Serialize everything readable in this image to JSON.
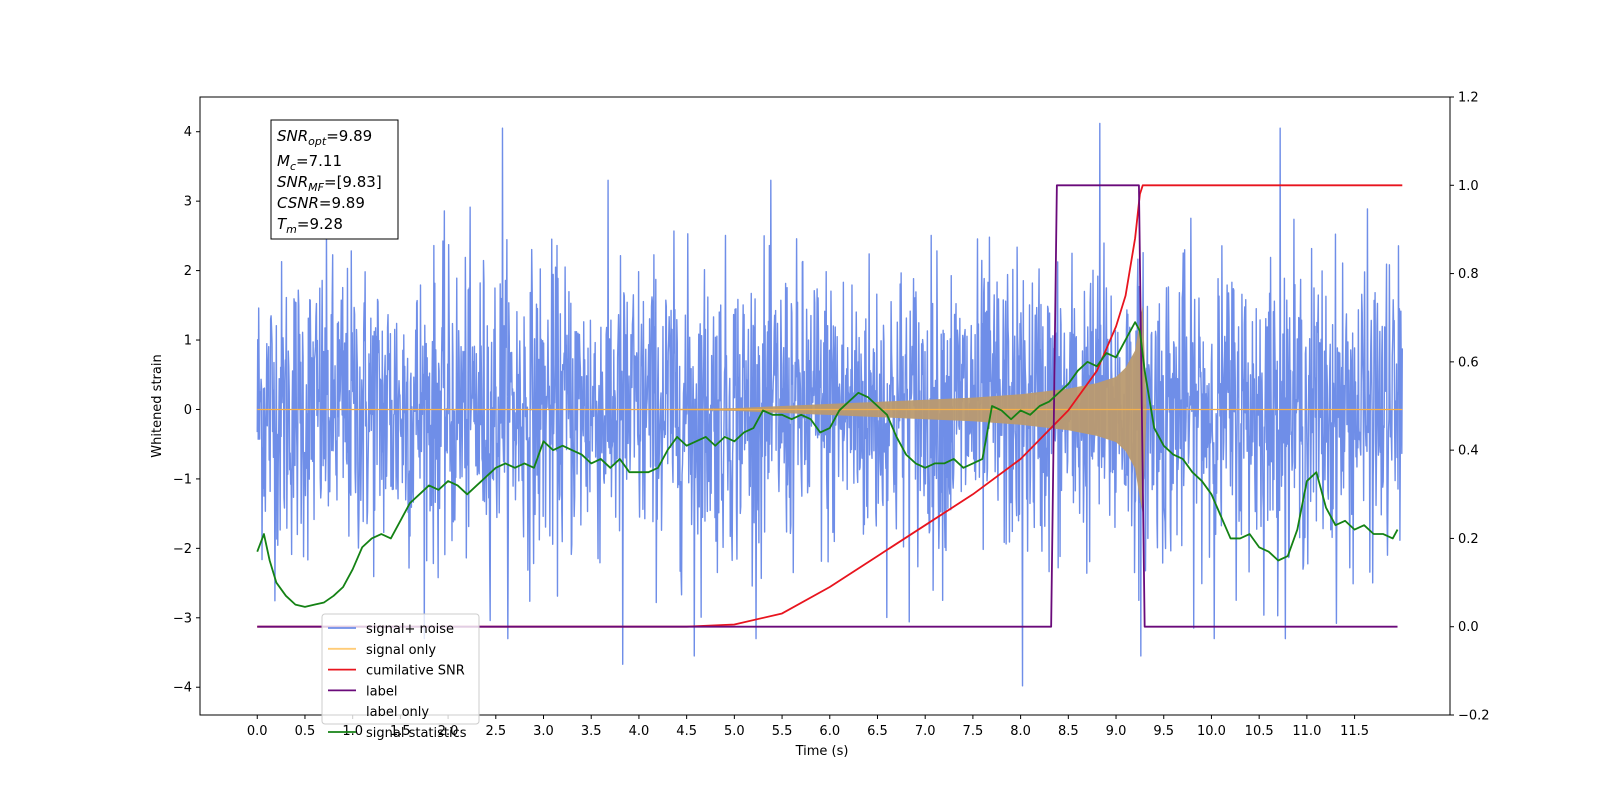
{
  "chart_data": {
    "type": "line",
    "xlabel": "Time (s)",
    "ylabel": "Whitened strain",
    "xlim": [
      -0.6,
      12.5
    ],
    "ylim": [
      -4.4,
      4.5
    ],
    "y2lim": [
      -0.2,
      1.2
    ],
    "x_ticks": [
      "0.0",
      "0.5",
      "1.0",
      "1.5",
      "2.0",
      "2.5",
      "3.0",
      "3.5",
      "4.0",
      "4.5",
      "5.0",
      "5.5",
      "6.0",
      "6.5",
      "7.0",
      "7.5",
      "8.0",
      "8.5",
      "9.0",
      "9.5",
      "10.0",
      "10.5",
      "11.0",
      "11.5"
    ],
    "y_ticks": [
      "-4",
      "-3",
      "-2",
      "-1",
      "0",
      "1",
      "2",
      "3",
      "4"
    ],
    "y2_ticks": [
      "-0.2",
      "0.0",
      "0.2",
      "0.4",
      "0.6",
      "0.8",
      "1.0",
      "1.2"
    ],
    "grid": false,
    "legend_position": "lower-left",
    "annotation": {
      "snr_opt_label": "SNR",
      "snr_opt_sub": "opt",
      "snr_opt_value": "=9.89",
      "mc_label": "M",
      "mc_sub": "c",
      "mc_value": "=7.11",
      "snr_mf_label": "SNR",
      "snr_mf_sub": "MF",
      "snr_mf_value": "=[9.83]",
      "csnr_label": "CSNR",
      "csnr_value": "=9.89",
      "tm_label": "T",
      "tm_sub": "m",
      "tm_value": "=9.28"
    },
    "series": [
      {
        "name": "signal+ noise",
        "color": "#6f8ee8",
        "axis": "left",
        "description_of_values": "whitened gaussian noise, |amplitude| mostly below 2.6, peaks near ±4",
        "noise_envelope": 2.6,
        "x_range": [
          0.0,
          12.0
        ],
        "peaks": [
          {
            "x": 2.57,
            "y": 4.05
          },
          {
            "x": 8.83,
            "y": 4.12
          },
          {
            "x": 10.72,
            "y": 4.05
          },
          {
            "x": 3.83,
            "y": -3.67
          },
          {
            "x": 8.02,
            "y": -3.98
          },
          {
            "x": 4.58,
            "y": -3.55
          },
          {
            "x": 9.26,
            "y": -3.55
          }
        ]
      },
      {
        "name": "signal only",
        "color": "#f5b04a",
        "axis": "left",
        "description_of_values": "chirp envelope (amplitude vs time)",
        "envelope_x": [
          0.0,
          4.0,
          5.0,
          5.5,
          6.0,
          6.5,
          7.0,
          7.5,
          8.0,
          8.5,
          8.8,
          9.0,
          9.1,
          9.2,
          9.24,
          9.28,
          9.32,
          12.0
        ],
        "envelope_y": [
          0.0,
          0.0,
          0.02,
          0.05,
          0.08,
          0.11,
          0.14,
          0.17,
          0.22,
          0.3,
          0.38,
          0.47,
          0.6,
          0.85,
          1.2,
          1.5,
          0.0,
          0.0
        ]
      },
      {
        "name": "cumilative SNR",
        "color": "#e8141e",
        "axis": "right",
        "x": [
          0.0,
          4.5,
          5.0,
          5.5,
          6.0,
          6.5,
          7.0,
          7.5,
          8.0,
          8.5,
          8.8,
          9.0,
          9.1,
          9.2,
          9.25,
          9.28,
          12.0
        ],
        "values": [
          0.0,
          0.0,
          0.005,
          0.03,
          0.09,
          0.16,
          0.23,
          0.3,
          0.38,
          0.49,
          0.58,
          0.68,
          0.75,
          0.88,
          0.98,
          1.0,
          1.0
        ]
      },
      {
        "name": "label",
        "color": "#6a0a7a",
        "axis": "right",
        "x": [
          0.0,
          8.32,
          8.38,
          9.24,
          9.3,
          11.95
        ],
        "values": [
          0.0,
          0.0,
          1.0,
          1.0,
          0.0,
          0.0
        ]
      },
      {
        "name": "label only",
        "color": "#e69f00",
        "axis": "right",
        "x": [],
        "values": []
      },
      {
        "name": "signal statistics",
        "color": "#148214",
        "axis": "right",
        "x": [
          0.0,
          0.07,
          0.13,
          0.2,
          0.3,
          0.4,
          0.5,
          0.6,
          0.7,
          0.8,
          0.9,
          1.0,
          1.1,
          1.2,
          1.3,
          1.4,
          1.5,
          1.6,
          1.7,
          1.8,
          1.9,
          2.0,
          2.1,
          2.2,
          2.3,
          2.4,
          2.5,
          2.6,
          2.7,
          2.8,
          2.9,
          3.0,
          3.1,
          3.2,
          3.3,
          3.4,
          3.5,
          3.6,
          3.7,
          3.8,
          3.9,
          4.0,
          4.1,
          4.2,
          4.3,
          4.4,
          4.5,
          4.6,
          4.7,
          4.8,
          4.9,
          5.0,
          5.1,
          5.2,
          5.3,
          5.4,
          5.5,
          5.6,
          5.7,
          5.8,
          5.9,
          6.0,
          6.1,
          6.2,
          6.3,
          6.4,
          6.5,
          6.6,
          6.7,
          6.8,
          6.9,
          7.0,
          7.1,
          7.2,
          7.3,
          7.4,
          7.5,
          7.6,
          7.7,
          7.8,
          7.9,
          8.0,
          8.1,
          8.2,
          8.3,
          8.4,
          8.5,
          8.6,
          8.7,
          8.8,
          8.9,
          9.0,
          9.1,
          9.2,
          9.25,
          9.3,
          9.4,
          9.5,
          9.6,
          9.7,
          9.8,
          9.9,
          10.0,
          10.1,
          10.2,
          10.3,
          10.4,
          10.5,
          10.6,
          10.7,
          10.8,
          10.9,
          11.0,
          11.1,
          11.2,
          11.3,
          11.4,
          11.5,
          11.6,
          11.7,
          11.8,
          11.9,
          11.95
        ],
        "values": [
          0.17,
          0.21,
          0.15,
          0.1,
          0.07,
          0.05,
          0.045,
          0.05,
          0.055,
          0.07,
          0.09,
          0.13,
          0.18,
          0.2,
          0.21,
          0.2,
          0.24,
          0.28,
          0.3,
          0.32,
          0.31,
          0.33,
          0.32,
          0.3,
          0.32,
          0.34,
          0.36,
          0.37,
          0.36,
          0.37,
          0.36,
          0.42,
          0.4,
          0.41,
          0.4,
          0.39,
          0.37,
          0.38,
          0.36,
          0.38,
          0.35,
          0.35,
          0.35,
          0.36,
          0.4,
          0.43,
          0.41,
          0.42,
          0.43,
          0.41,
          0.43,
          0.42,
          0.44,
          0.45,
          0.49,
          0.48,
          0.48,
          0.47,
          0.48,
          0.47,
          0.44,
          0.45,
          0.49,
          0.51,
          0.53,
          0.52,
          0.5,
          0.48,
          0.43,
          0.39,
          0.37,
          0.36,
          0.37,
          0.37,
          0.38,
          0.36,
          0.37,
          0.38,
          0.5,
          0.49,
          0.47,
          0.49,
          0.48,
          0.5,
          0.51,
          0.53,
          0.55,
          0.58,
          0.6,
          0.59,
          0.62,
          0.61,
          0.65,
          0.69,
          0.67,
          0.58,
          0.45,
          0.41,
          0.39,
          0.38,
          0.35,
          0.33,
          0.3,
          0.25,
          0.2,
          0.2,
          0.21,
          0.18,
          0.17,
          0.15,
          0.16,
          0.22,
          0.33,
          0.35,
          0.27,
          0.23,
          0.24,
          0.22,
          0.23,
          0.21,
          0.21,
          0.2,
          0.22
        ]
      }
    ]
  }
}
